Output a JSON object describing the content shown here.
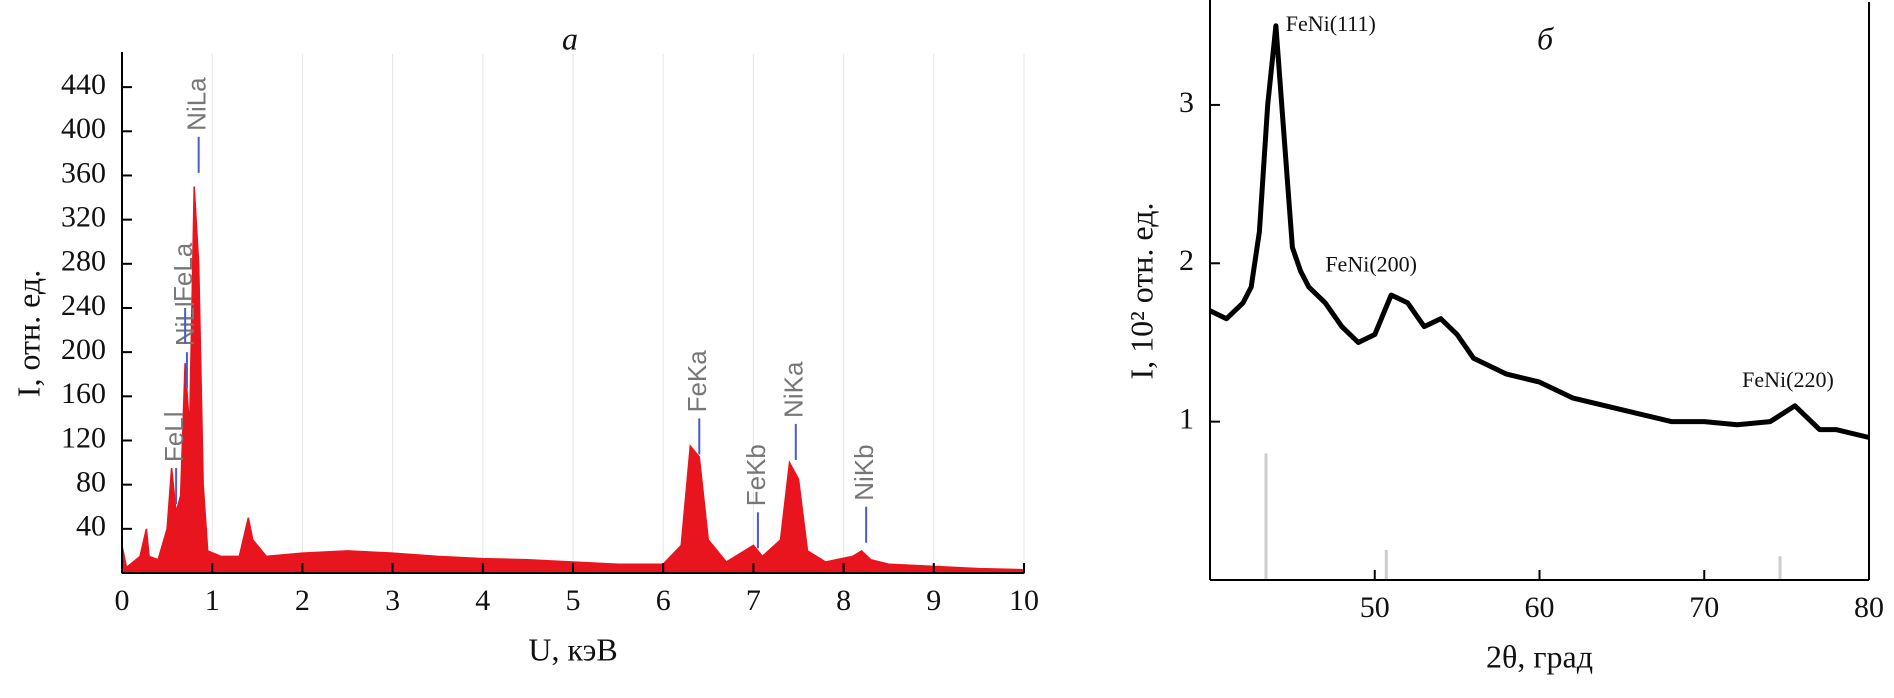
{
  "chart_data": [
    {
      "type": "area",
      "title": "a",
      "xlabel": "U, кэВ",
      "ylabel": "I, отн. ед.",
      "xlim": [
        0,
        10
      ],
      "ylim": [
        0,
        470
      ],
      "xticks": [
        0,
        1,
        2,
        3,
        4,
        5,
        6,
        7,
        8,
        9,
        10
      ],
      "yticks": [
        40,
        80,
        120,
        160,
        200,
        240,
        280,
        320,
        360,
        400,
        440
      ],
      "grid": true,
      "series": [
        {
          "color": "#e8141e",
          "x": [
            0,
            0.05,
            0.2,
            0.27,
            0.3,
            0.4,
            0.5,
            0.55,
            0.6,
            0.65,
            0.7,
            0.75,
            0.8,
            0.85,
            0.9,
            0.95,
            1.1,
            1.3,
            1.4,
            1.45,
            1.6,
            2,
            2.5,
            3,
            3.5,
            4,
            4.5,
            5,
            5.5,
            6,
            6.2,
            6.3,
            6.4,
            6.5,
            6.7,
            6.9,
            7.0,
            7.1,
            7.3,
            7.4,
            7.5,
            7.6,
            7.8,
            8.1,
            8.2,
            8.3,
            8.5,
            9,
            9.5,
            10
          ],
          "values": [
            25,
            5,
            15,
            40,
            15,
            12,
            40,
            95,
            55,
            70,
            190,
            130,
            350,
            280,
            80,
            20,
            15,
            15,
            50,
            30,
            15,
            18,
            20,
            18,
            15,
            13,
            12,
            10,
            8,
            8,
            25,
            115,
            105,
            30,
            10,
            20,
            25,
            15,
            30,
            100,
            85,
            20,
            10,
            15,
            20,
            12,
            8,
            6,
            4,
            3
          ]
        }
      ],
      "annotations": [
        {
          "text": "FeLl",
          "x": 0.6,
          "y": 95
        },
        {
          "text": "NiLl",
          "x": 0.72,
          "y": 200
        },
        {
          "text": "FeLa",
          "x": 0.7,
          "y": 240
        },
        {
          "text": "NiLa",
          "x": 0.85,
          "y": 395
        },
        {
          "text": "FeKa",
          "x": 6.4,
          "y": 140
        },
        {
          "text": "FeKb",
          "x": 7.05,
          "y": 55
        },
        {
          "text": "NiKa",
          "x": 7.47,
          "y": 135
        },
        {
          "text": "NiKb",
          "x": 8.25,
          "y": 60
        }
      ]
    },
    {
      "type": "line",
      "title": "б",
      "xlabel": "2θ, град",
      "ylabel": "I, 10² отн. ед.",
      "xlim": [
        40,
        80
      ],
      "ylim": [
        0,
        3.65
      ],
      "xticks": [
        50,
        60,
        70,
        80
      ],
      "yticks": [
        1,
        2,
        3
      ],
      "series": [
        {
          "color": "#000000",
          "x": [
            40,
            41,
            42,
            42.5,
            43,
            43.5,
            44,
            44.5,
            45,
            45.5,
            46,
            47,
            48,
            49,
            50,
            51,
            52,
            53,
            54,
            55,
            56,
            58,
            60,
            62,
            64,
            66,
            68,
            70,
            72,
            74,
            75.5,
            77,
            78,
            80
          ],
          "values": [
            1.7,
            1.65,
            1.75,
            1.85,
            2.2,
            3.0,
            3.5,
            2.8,
            2.1,
            1.95,
            1.85,
            1.75,
            1.6,
            1.5,
            1.55,
            1.8,
            1.75,
            1.6,
            1.65,
            1.55,
            1.4,
            1.3,
            1.25,
            1.15,
            1.1,
            1.05,
            1.0,
            1.0,
            0.98,
            1.0,
            1.1,
            0.95,
            0.95,
            0.9
          ]
        },
        {
          "type": "stick",
          "color": "#cccccc",
          "x": [
            43.4,
            50.7,
            74.6
          ],
          "values": [
            0.8,
            0.19,
            0.15
          ]
        }
      ],
      "annotations": [
        {
          "text": "FeNi(111)",
          "x": 44.6,
          "y": 3.5
        },
        {
          "text": "FeNi(200)",
          "x": 47,
          "y": 1.98
        },
        {
          "text": "FeNi(220)",
          "x": 72.3,
          "y": 1.25
        }
      ]
    }
  ]
}
